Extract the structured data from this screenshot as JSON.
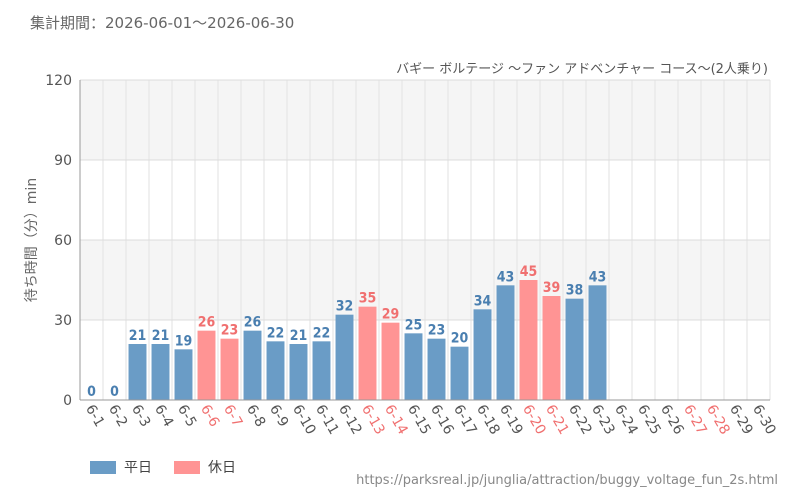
{
  "header": {
    "period_label": "集計期間：2026-06-01～2026-06-30",
    "attraction_name": "バギー ボルテージ ～ファン アドベンチャー コース～(2人乗り)"
  },
  "legend": {
    "weekday_label": "平日",
    "holiday_label": "休日"
  },
  "footer": {
    "url": "https://parksreal.jp/junglia/attraction/buggy_voltage_fun_2s.html"
  },
  "colors": {
    "weekday": "#6a9cc6",
    "weekday_text": "#4a7fb0",
    "holiday": "#ff9494",
    "holiday_text": "#f07070"
  },
  "chart_data": {
    "type": "bar",
    "title": "",
    "xlabel": "",
    "ylabel": "待ち時間（分）min",
    "ylim": [
      0,
      120
    ],
    "yticks": [
      0,
      30,
      60,
      90,
      120
    ],
    "grid": true,
    "categories": [
      "6-1",
      "6-2",
      "6-3",
      "6-4",
      "6-5",
      "6-6",
      "6-7",
      "6-8",
      "6-9",
      "6-10",
      "6-11",
      "6-12",
      "6-13",
      "6-14",
      "6-15",
      "6-16",
      "6-17",
      "6-18",
      "6-19",
      "6-20",
      "6-21",
      "6-22",
      "6-23",
      "6-24",
      "6-25",
      "6-26",
      "6-27",
      "6-28",
      "6-29",
      "6-30"
    ],
    "values": [
      0,
      0,
      21,
      21,
      19,
      26,
      23,
      26,
      22,
      21,
      22,
      32,
      35,
      29,
      25,
      23,
      20,
      34,
      43,
      45,
      39,
      38,
      43,
      null,
      null,
      null,
      null,
      null,
      null,
      null
    ],
    "day_type": [
      "weekday",
      "weekday",
      "weekday",
      "weekday",
      "weekday",
      "holiday",
      "holiday",
      "weekday",
      "weekday",
      "weekday",
      "weekday",
      "weekday",
      "holiday",
      "holiday",
      "weekday",
      "weekday",
      "weekday",
      "weekday",
      "weekday",
      "holiday",
      "holiday",
      "weekday",
      "weekday",
      "weekday",
      "weekday",
      "weekday",
      "holiday",
      "holiday",
      "weekday",
      "weekday"
    ]
  }
}
